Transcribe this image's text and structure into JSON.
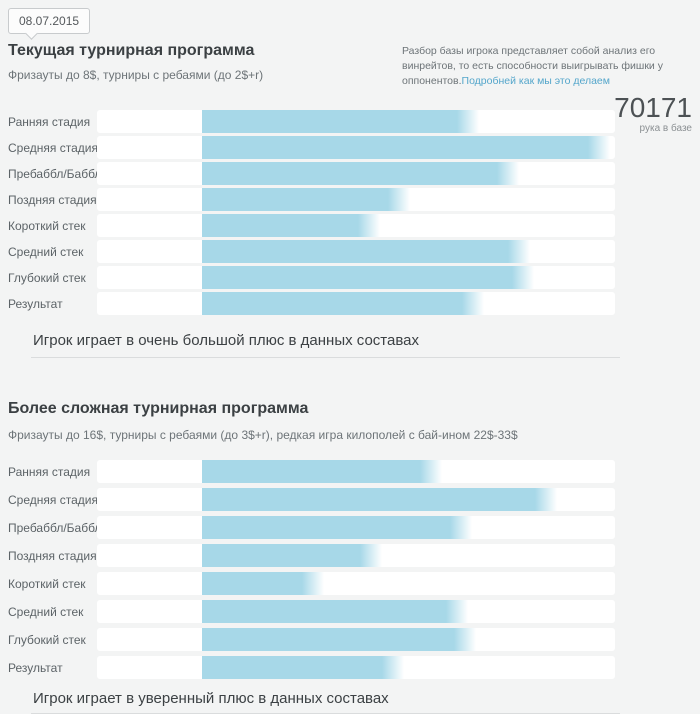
{
  "page": {
    "date_badge": "08.07.2015"
  },
  "info": {
    "description": "Разбор базы игрока представляет собой анализ его винрейтов, то есть способности выигрывать фишки у оппонентов.",
    "link_label": "Подробней как мы это делаем",
    "hands_count": "70171",
    "hands_caption": "рука в базе"
  },
  "colors": {
    "bar": "#a7d8e8",
    "link": "#54a6cb"
  },
  "sections": [
    {
      "title": "Текущая турнирная программа",
      "subtitle": "Фризауты до 8$, турниры с ребаями (до 2$+r)",
      "summary": "Игрок играет в очень большой плюс в данных составах",
      "chart": {
        "type": "bar",
        "orientation": "horizontal",
        "value_scale": "percent_of_bar_area",
        "rows": [
          {
            "label": "Ранняя стадия",
            "value_pct": 67.1
          },
          {
            "label": "Средняя стадия",
            "value_pct": 98.8
          },
          {
            "label": "Пребаббл/Баббл",
            "value_pct": 76.8
          },
          {
            "label": "Поздняя стадия",
            "value_pct": 50.4
          },
          {
            "label": "Короткий стек",
            "value_pct": 43.1
          },
          {
            "label": "Средний стек",
            "value_pct": 79.4
          },
          {
            "label": "Глубокий стек",
            "value_pct": 80.4
          },
          {
            "label": "Результат",
            "value_pct": 68.3
          }
        ]
      }
    },
    {
      "title": "Более сложная турнирная программа",
      "subtitle": "Фризауты до 16$, турниры с ребаями (до 3$+r), редкая игра килополей с бай-ином 22$-33$",
      "summary": "Игрок играет в уверенный плюс в данных составах",
      "chart": {
        "type": "bar",
        "orientation": "horizontal",
        "value_scale": "percent_of_bar_area",
        "rows": [
          {
            "label": "Ранняя стадия",
            "value_pct": 58.1
          },
          {
            "label": "Средняя стадия",
            "value_pct": 86.0
          },
          {
            "label": "Пребаббл/Баббл",
            "value_pct": 65.4
          },
          {
            "label": "Поздняя стадия",
            "value_pct": 43.6
          },
          {
            "label": "Короткий стек",
            "value_pct": 29.5
          },
          {
            "label": "Средний стек",
            "value_pct": 64.4
          },
          {
            "label": "Глубокий стек",
            "value_pct": 66.3
          },
          {
            "label": "Результат",
            "value_pct": 48.9
          }
        ]
      }
    }
  ]
}
